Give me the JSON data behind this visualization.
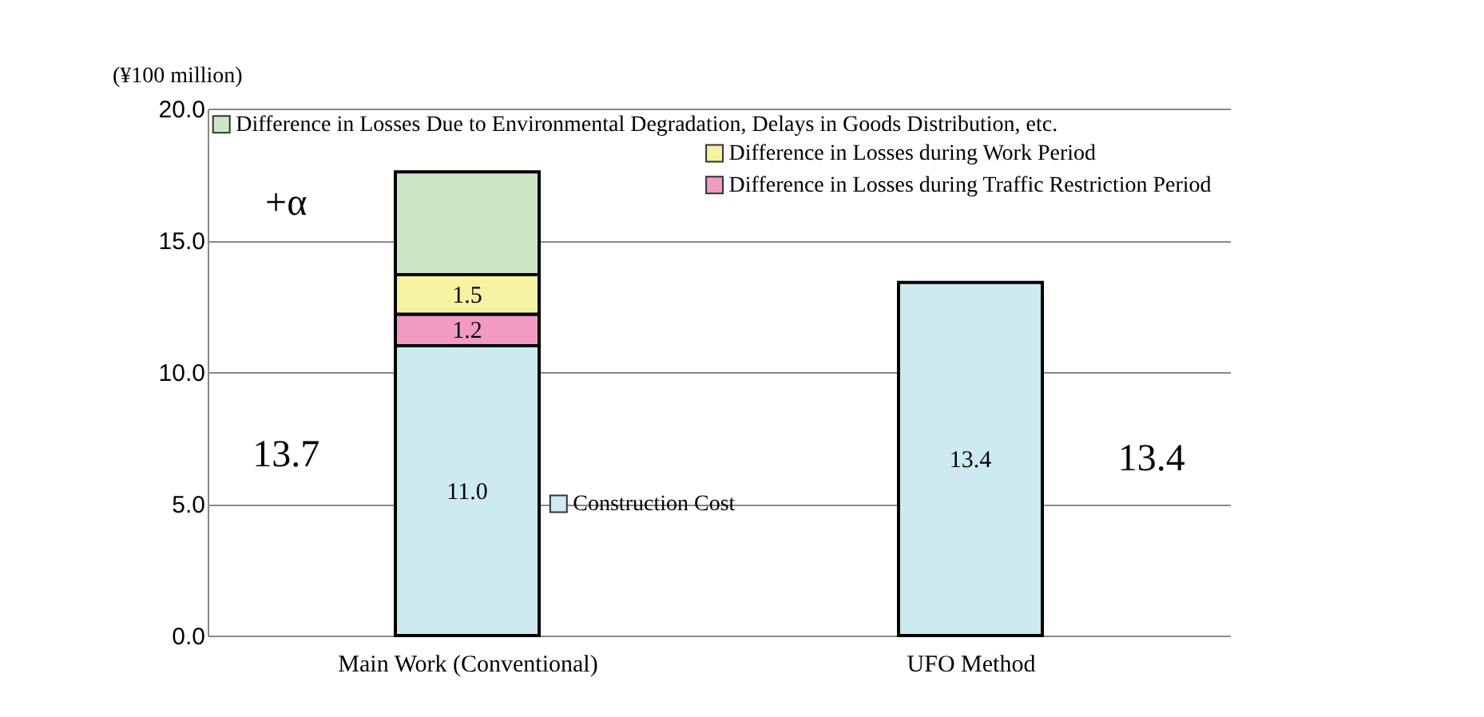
{
  "chart_data": {
    "type": "bar",
    "stacked": true,
    "ylabel": "(¥100 million)",
    "categories": [
      "Main Work (Conventional)",
      "UFO Method"
    ],
    "ylim": [
      0,
      20
    ],
    "yticks": [
      {
        "value": 0,
        "label": "0.0"
      },
      {
        "value": 5,
        "label": "5.0"
      },
      {
        "value": 10,
        "label": "10.0"
      },
      {
        "value": 15,
        "label": "15.0"
      },
      {
        "value": 20,
        "label": "20.0"
      }
    ],
    "grid": "y",
    "series": [
      {
        "name": "Construction Cost",
        "color": "#cdeaf0",
        "values": [
          11.0,
          13.4
        ],
        "value_labels": [
          "11.0",
          "13.4"
        ]
      },
      {
        "name": "Difference in Losses during Traffic Restriction Period",
        "color": "#f29ac4",
        "values": [
          1.2,
          null
        ],
        "value_labels": [
          "1.2",
          null
        ]
      },
      {
        "name": "Difference in Losses during Work Period",
        "color": "#f5f2a2",
        "values": [
          1.5,
          null
        ],
        "value_labels": [
          "1.5",
          null
        ]
      },
      {
        "name": "Difference in Losses Due to Environmental Degradation, Delays in Goods Distribution, etc.",
        "color": "#cde6c6",
        "values": [
          3.9,
          null
        ]
      }
    ],
    "annotations": [
      "+α",
      "13.7",
      "13.4"
    ],
    "legend": "top"
  }
}
